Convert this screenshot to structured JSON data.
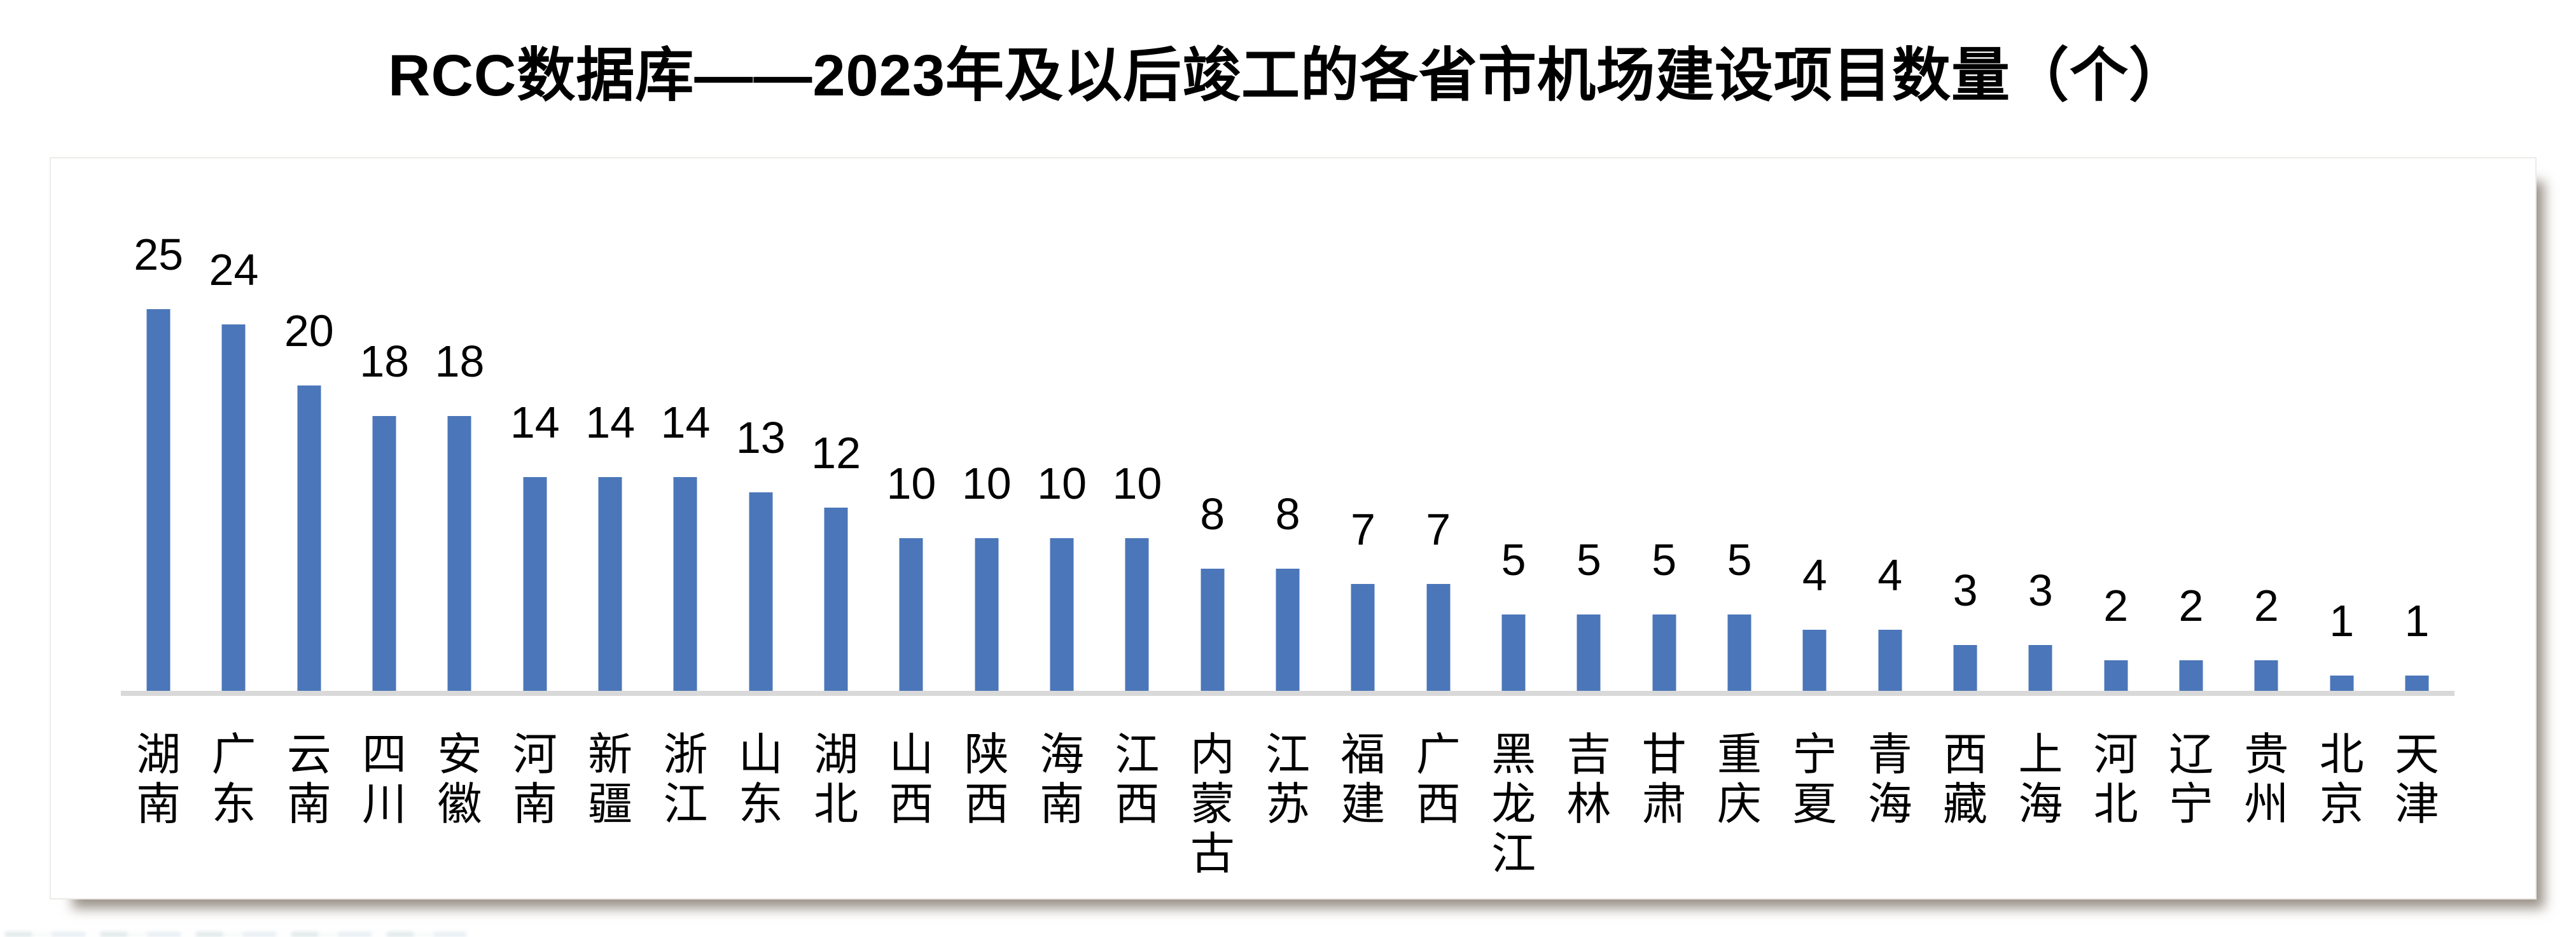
{
  "chart_data": {
    "type": "bar",
    "title": "RCC数据库——2023年及以后竣工的各省市机场建设项目数量（个）",
    "categories": [
      "湖南",
      "广东",
      "云南",
      "四川",
      "安徽",
      "河南",
      "新疆",
      "浙江",
      "山东",
      "湖北",
      "山西",
      "陕西",
      "海南",
      "江西",
      "内蒙古",
      "江苏",
      "福建",
      "广西",
      "黑龙江",
      "吉林",
      "甘肃",
      "重庆",
      "宁夏",
      "青海",
      "西藏",
      "上海",
      "河北",
      "辽宁",
      "贵州",
      "北京",
      "天津"
    ],
    "values": [
      25,
      24,
      20,
      18,
      18,
      14,
      14,
      14,
      13,
      12,
      10,
      10,
      10,
      10,
      8,
      8,
      7,
      7,
      5,
      5,
      5,
      5,
      4,
      4,
      3,
      3,
      2,
      2,
      2,
      1,
      1
    ],
    "xlabel": "",
    "ylabel": "",
    "ylim": [
      0,
      25
    ],
    "grid": false,
    "legend_position": "none",
    "value_labels": true,
    "bar_color": "#4B76B9",
    "axis_line_color": "#D9D9D9",
    "label_color": "#000000"
  }
}
